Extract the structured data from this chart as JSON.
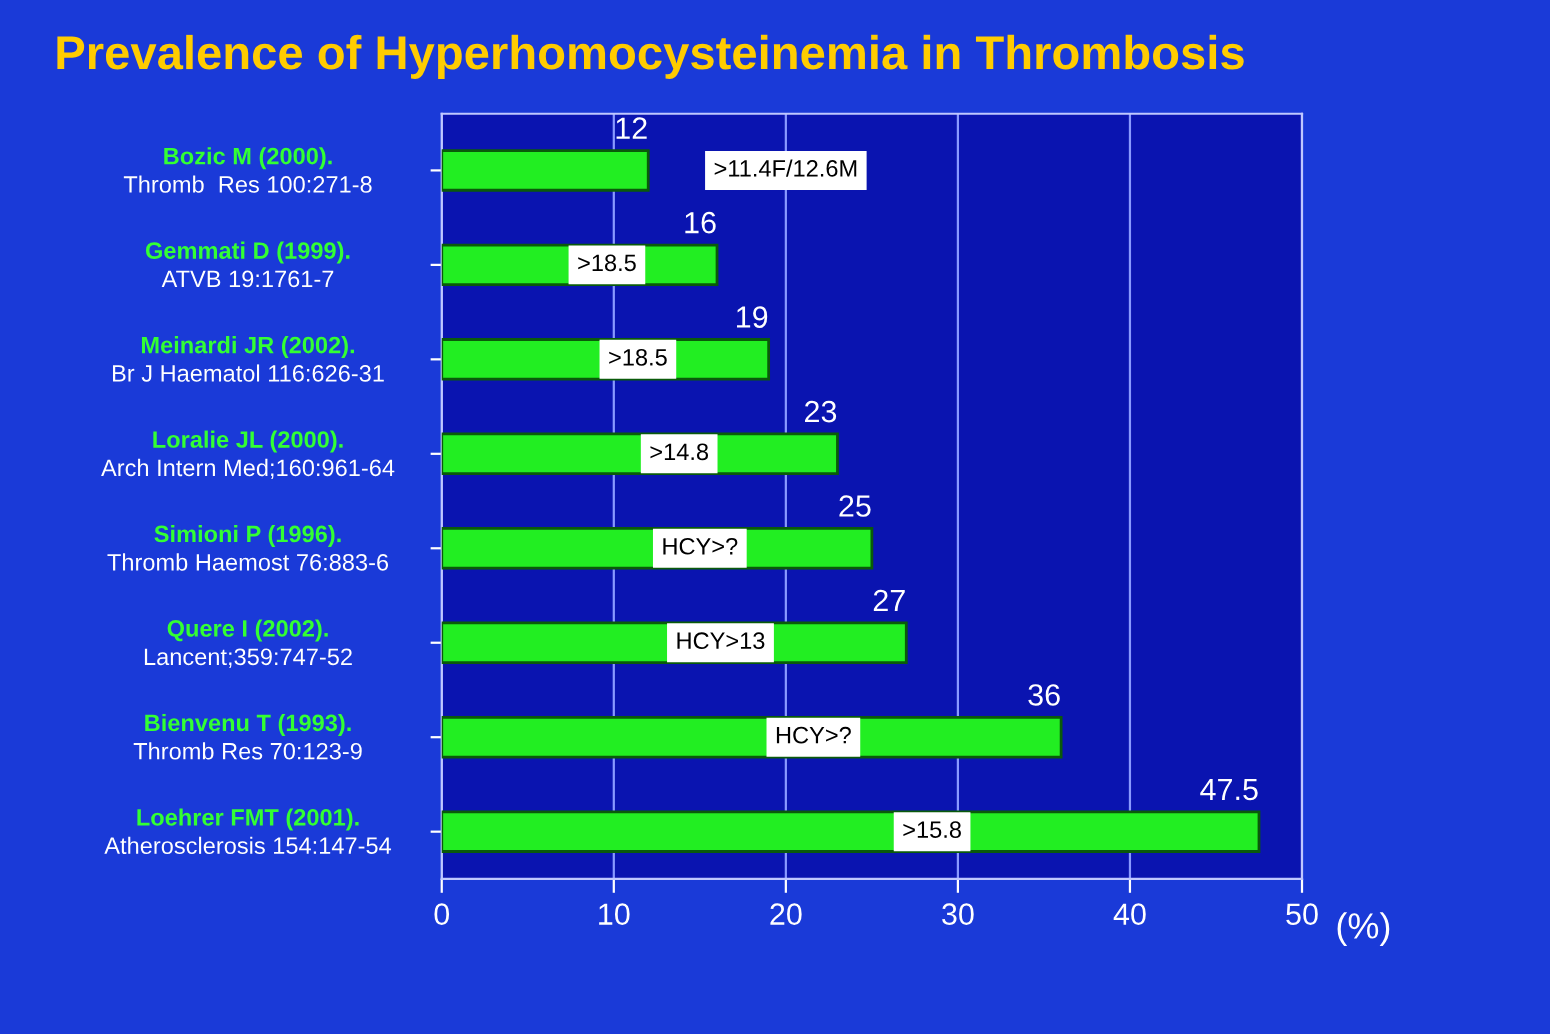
{
  "chart_data": {
    "type": "bar",
    "orientation": "horizontal",
    "title": "Prevalence of Hyperhomocysteinemia in Thrombosis",
    "xlabel": "(%)",
    "categories": [
      "Bozic M (2000).\nThromb  Res 100:271-8",
      "Gemmati D (1999).\nATVB 19:1761-7",
      "Meinardi JR (2002).\nBr J Haematol 116:626-31",
      "Loralie JL (2000).\nArch Intern Med;160:961-64",
      "Simioni P (1996).\nThromb Haemost 76:883-6",
      "Quere I (2002).\nLancent;359:747-52",
      "Bienvenu T (1993).\nThromb Res 70:123-9",
      "Loehrer FMT (2001).\nAtherosclerosis 154:147-54"
    ],
    "values": [
      12,
      16,
      19,
      23,
      25,
      27,
      36,
      47.5
    ],
    "color": "#22ee22",
    "data_labels": true,
    "xlim": [
      0,
      50
    ],
    "xticks": [
      0,
      10,
      20,
      30,
      40,
      50
    ],
    "grid": "x",
    "annotations": [
      ">11.4F/12.6M",
      ">18.5",
      ">18.5",
      ">14.8",
      "HCY>?",
      "HCY>13",
      "HCY>?",
      ">15.8"
    ]
  }
}
